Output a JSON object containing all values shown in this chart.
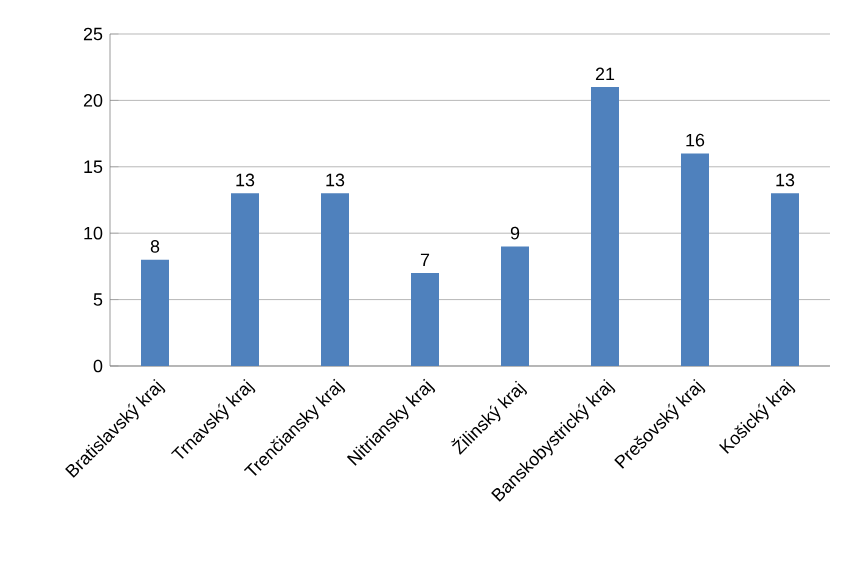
{
  "chart_data": {
    "type": "bar",
    "categories": [
      "Bratislavský kraj",
      "Trnavský kraj",
      "Trenčiansky kraj",
      "Nitriansky kraj",
      "Žilinský kraj",
      "Banskobystrický kraj",
      "Prešovský kraj",
      "Košický kraj"
    ],
    "values": [
      8,
      13,
      13,
      7,
      9,
      21,
      16,
      13
    ],
    "color": "#4f81bd",
    "ylim": [
      0,
      25
    ],
    "yticks": [
      0,
      5,
      10,
      15,
      20,
      25
    ],
    "grid": "y",
    "data_labels": true
  }
}
